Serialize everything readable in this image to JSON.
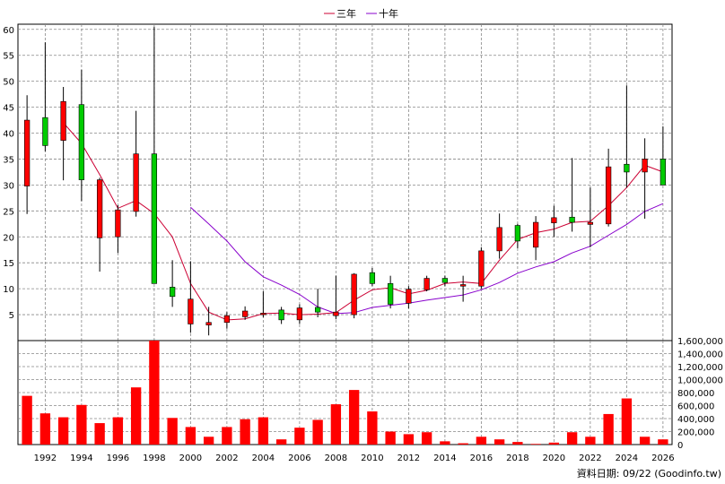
{
  "chart_data": {
    "type": "candlestick",
    "legend": [
      {
        "label": "三年",
        "color": "#cc0033"
      },
      {
        "label": "十年",
        "color": "#8800cc"
      }
    ],
    "legend_position": "top-center",
    "grid": true,
    "source_note": "資料日期: 09/22  (Goodinfo.tw)",
    "x_tick_labels": [
      "1992",
      "1994",
      "1996",
      "1998",
      "2000",
      "2002",
      "2004",
      "2006",
      "2008",
      "2010",
      "2012",
      "2014",
      "2016",
      "2018",
      "2020",
      "2022",
      "2024",
      "2026"
    ],
    "price_axis": {
      "ylim": [
        0,
        61
      ],
      "ticks": [
        5,
        10,
        15,
        20,
        25,
        30,
        35,
        40,
        45,
        50,
        55,
        60
      ]
    },
    "volume_axis": {
      "ylim": [
        0,
        1600000
      ],
      "ticks": [
        "0",
        "200,000",
        "400,000",
        "600,000",
        "800,000",
        "1,000,000",
        "1,200,000",
        "1,400,000",
        "1,600,000"
      ]
    },
    "colors": {
      "up": "#00cc00",
      "down": "#ff0000",
      "volume": "#ff0000",
      "wick": "#000000",
      "grid": "#888888"
    },
    "candles": [
      {
        "year": 1991,
        "open": 42.5,
        "high": 47.3,
        "low": 24.4,
        "close": 29.8
      },
      {
        "year": 1992,
        "open": 37.6,
        "high": 57.5,
        "low": 36.5,
        "close": 43.0
      },
      {
        "year": 1993,
        "open": 46.1,
        "high": 48.9,
        "low": 30.9,
        "close": 38.6
      },
      {
        "year": 1994,
        "open": 31.0,
        "high": 52.2,
        "low": 26.9,
        "close": 45.5
      },
      {
        "year": 1995,
        "open": 31.0,
        "high": 31.4,
        "low": 13.3,
        "close": 19.8
      },
      {
        "year": 1996,
        "open": 25.2,
        "high": 26.1,
        "low": 16.9,
        "close": 20.0
      },
      {
        "year": 1997,
        "open": 36.0,
        "high": 44.3,
        "low": 23.9,
        "close": 24.9
      },
      {
        "year": 1998,
        "open": 11.0,
        "high": 60.5,
        "low": 11.0,
        "close": 36.0
      },
      {
        "year": 1999,
        "open": 8.5,
        "high": 15.5,
        "low": 6.5,
        "close": 10.3
      },
      {
        "year": 2000,
        "open": 8.0,
        "high": 15.3,
        "low": 1.5,
        "close": 3.2
      },
      {
        "year": 2001,
        "open": 3.5,
        "high": 6.5,
        "low": 1.0,
        "close": 3.0
      },
      {
        "year": 2002,
        "open": 4.8,
        "high": 5.5,
        "low": 2.3,
        "close": 3.5
      },
      {
        "year": 2003,
        "open": 5.7,
        "high": 6.6,
        "low": 4.0,
        "close": 4.6
      },
      {
        "year": 2004,
        "open": 5.3,
        "high": 9.5,
        "low": 4.5,
        "close": 5.0
      },
      {
        "year": 2005,
        "open": 4.0,
        "high": 6.5,
        "low": 3.2,
        "close": 5.9
      },
      {
        "year": 2006,
        "open": 6.3,
        "high": 7.0,
        "low": 3.2,
        "close": 4.0
      },
      {
        "year": 2007,
        "open": 5.5,
        "high": 10.0,
        "low": 4.5,
        "close": 6.4
      },
      {
        "year": 2008,
        "open": 5.5,
        "high": 12.5,
        "low": 4.1,
        "close": 4.8
      },
      {
        "year": 2009,
        "open": 12.8,
        "high": 13.0,
        "low": 4.3,
        "close": 5.0
      },
      {
        "year": 2010,
        "open": 11.0,
        "high": 14.0,
        "low": 10.5,
        "close": 13.1
      },
      {
        "year": 2011,
        "open": 7.0,
        "high": 12.5,
        "low": 6.2,
        "close": 11.0
      },
      {
        "year": 2012,
        "open": 9.9,
        "high": 10.5,
        "low": 6.2,
        "close": 7.2
      },
      {
        "year": 2013,
        "open": 12.0,
        "high": 12.5,
        "low": 9.5,
        "close": 9.8
      },
      {
        "year": 2014,
        "open": 11.2,
        "high": 12.5,
        "low": 10.5,
        "close": 12.0
      },
      {
        "year": 2015,
        "open": 10.8,
        "high": 12.5,
        "low": 7.5,
        "close": 10.5
      },
      {
        "year": 2016,
        "open": 17.3,
        "high": 18.0,
        "low": 10.0,
        "close": 10.5
      },
      {
        "year": 2017,
        "open": 21.8,
        "high": 24.5,
        "low": 15.8,
        "close": 17.3
      },
      {
        "year": 2018,
        "open": 19.2,
        "high": 22.5,
        "low": 17.8,
        "close": 22.2
      },
      {
        "year": 2019,
        "open": 22.8,
        "high": 24.0,
        "low": 15.5,
        "close": 18.0
      },
      {
        "year": 2020,
        "open": 23.7,
        "high": 26.0,
        "low": 20.0,
        "close": 22.7
      },
      {
        "year": 2021,
        "open": 22.8,
        "high": 35.2,
        "low": 21.0,
        "close": 23.8
      },
      {
        "year": 2022,
        "open": 22.8,
        "high": 29.5,
        "low": 18.0,
        "close": 22.4
      },
      {
        "year": 2023,
        "open": 33.5,
        "high": 37.0,
        "low": 22.0,
        "close": 22.5
      },
      {
        "year": 2024,
        "open": 32.5,
        "high": 49.2,
        "low": 29.5,
        "close": 34.0
      },
      {
        "year": 2025,
        "open": 35.0,
        "high": 39.0,
        "low": 23.5,
        "close": 32.5
      },
      {
        "year": 2026,
        "open": 30.0,
        "high": 41.3,
        "low": 30.0,
        "close": 35.0
      }
    ],
    "ma_3yr": [
      {
        "year": 1993,
        "value": 42.0
      },
      {
        "year": 1994,
        "value": 38.0
      },
      {
        "year": 1995,
        "value": 32.0
      },
      {
        "year": 1996,
        "value": 25.5
      },
      {
        "year": 1997,
        "value": 27.0
      },
      {
        "year": 1998,
        "value": 24.5
      },
      {
        "year": 1999,
        "value": 20.0
      },
      {
        "year": 2000,
        "value": 11.0
      },
      {
        "year": 2001,
        "value": 5.5
      },
      {
        "year": 2002,
        "value": 4.0
      },
      {
        "year": 2003,
        "value": 4.2
      },
      {
        "year": 2004,
        "value": 5.2
      },
      {
        "year": 2005,
        "value": 5.3
      },
      {
        "year": 2006,
        "value": 5.0
      },
      {
        "year": 2007,
        "value": 5.1
      },
      {
        "year": 2008,
        "value": 5.4
      },
      {
        "year": 2009,
        "value": 7.8
      },
      {
        "year": 2010,
        "value": 9.8
      },
      {
        "year": 2011,
        "value": 10.2
      },
      {
        "year": 2012,
        "value": 9.0
      },
      {
        "year": 2013,
        "value": 9.7
      },
      {
        "year": 2014,
        "value": 11.0
      },
      {
        "year": 2015,
        "value": 11.3
      },
      {
        "year": 2016,
        "value": 11.0
      },
      {
        "year": 2017,
        "value": 15.5
      },
      {
        "year": 2018,
        "value": 19.5
      },
      {
        "year": 2019,
        "value": 20.8
      },
      {
        "year": 2020,
        "value": 21.5
      },
      {
        "year": 2021,
        "value": 22.8
      },
      {
        "year": 2022,
        "value": 23.0
      },
      {
        "year": 2023,
        "value": 26.0
      },
      {
        "year": 2024,
        "value": 29.5
      },
      {
        "year": 2025,
        "value": 33.8
      },
      {
        "year": 2026,
        "value": 32.5
      }
    ],
    "ma_10yr": [
      {
        "year": 2000,
        "value": 25.7
      },
      {
        "year": 2001,
        "value": 22.5
      },
      {
        "year": 2002,
        "value": 19.2
      },
      {
        "year": 2003,
        "value": 15.2
      },
      {
        "year": 2004,
        "value": 12.3
      },
      {
        "year": 2005,
        "value": 10.7
      },
      {
        "year": 2006,
        "value": 8.9
      },
      {
        "year": 2007,
        "value": 6.5
      },
      {
        "year": 2008,
        "value": 5.2
      },
      {
        "year": 2009,
        "value": 5.4
      },
      {
        "year": 2010,
        "value": 6.4
      },
      {
        "year": 2011,
        "value": 6.8
      },
      {
        "year": 2012,
        "value": 7.2
      },
      {
        "year": 2013,
        "value": 7.8
      },
      {
        "year": 2014,
        "value": 8.3
      },
      {
        "year": 2015,
        "value": 8.8
      },
      {
        "year": 2016,
        "value": 9.8
      },
      {
        "year": 2017,
        "value": 11.2
      },
      {
        "year": 2018,
        "value": 13.0
      },
      {
        "year": 2019,
        "value": 14.2
      },
      {
        "year": 2020,
        "value": 15.2
      },
      {
        "year": 2021,
        "value": 16.9
      },
      {
        "year": 2022,
        "value": 18.2
      },
      {
        "year": 2023,
        "value": 20.3
      },
      {
        "year": 2024,
        "value": 22.4
      },
      {
        "year": 2025,
        "value": 24.9
      },
      {
        "year": 2026,
        "value": 26.4
      }
    ],
    "volume": [
      {
        "year": 1991,
        "value": 750000
      },
      {
        "year": 1992,
        "value": 480000
      },
      {
        "year": 1993,
        "value": 420000
      },
      {
        "year": 1994,
        "value": 610000
      },
      {
        "year": 1995,
        "value": 330000
      },
      {
        "year": 1996,
        "value": 420000
      },
      {
        "year": 1997,
        "value": 880000
      },
      {
        "year": 1998,
        "value": 1600000
      },
      {
        "year": 1999,
        "value": 410000
      },
      {
        "year": 2000,
        "value": 270000
      },
      {
        "year": 2001,
        "value": 120000
      },
      {
        "year": 2002,
        "value": 270000
      },
      {
        "year": 2003,
        "value": 390000
      },
      {
        "year": 2004,
        "value": 420000
      },
      {
        "year": 2005,
        "value": 80000
      },
      {
        "year": 2006,
        "value": 260000
      },
      {
        "year": 2007,
        "value": 380000
      },
      {
        "year": 2008,
        "value": 620000
      },
      {
        "year": 2009,
        "value": 840000
      },
      {
        "year": 2010,
        "value": 510000
      },
      {
        "year": 2011,
        "value": 200000
      },
      {
        "year": 2012,
        "value": 160000
      },
      {
        "year": 2013,
        "value": 190000
      },
      {
        "year": 2014,
        "value": 50000
      },
      {
        "year": 2015,
        "value": 20000
      },
      {
        "year": 2016,
        "value": 120000
      },
      {
        "year": 2017,
        "value": 80000
      },
      {
        "year": 2018,
        "value": 40000
      },
      {
        "year": 2019,
        "value": 10000
      },
      {
        "year": 2020,
        "value": 30000
      },
      {
        "year": 2021,
        "value": 190000
      },
      {
        "year": 2022,
        "value": 120000
      },
      {
        "year": 2023,
        "value": 470000
      },
      {
        "year": 2024,
        "value": 710000
      },
      {
        "year": 2025,
        "value": 120000
      },
      {
        "year": 2026,
        "value": 80000
      }
    ]
  }
}
